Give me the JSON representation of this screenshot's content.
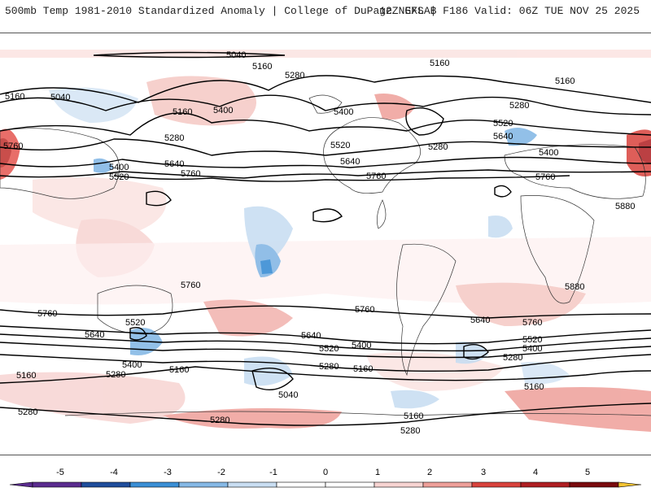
{
  "header": {
    "title": "500mb Temp 1981-2010 Standardized Anomaly | College of DuPage NEXLAB",
    "run_info": "12Z GFS | F186 Valid: 06Z TUE NOV 25 2025"
  },
  "map": {
    "contour_labels": [
      {
        "id": "c5040-top",
        "text": "5040"
      },
      {
        "id": "c5160-top",
        "text": "5160"
      },
      {
        "id": "c5160-ne",
        "text": "5160"
      },
      {
        "id": "c5280-n",
        "text": "5280"
      },
      {
        "id": "c5160-w",
        "text": "5160"
      },
      {
        "id": "c5040-w",
        "text": "5040"
      },
      {
        "id": "c5160-nw",
        "text": "5160"
      },
      {
        "id": "c5400-n",
        "text": "5400"
      },
      {
        "id": "c5280-nw",
        "text": "5280"
      },
      {
        "id": "c5160-e",
        "text": "5160"
      },
      {
        "id": "c5280-e",
        "text": "5280"
      },
      {
        "id": "c5400-na",
        "text": "5400"
      },
      {
        "id": "c5520-e",
        "text": "5520"
      },
      {
        "id": "c5640-e",
        "text": "5640"
      },
      {
        "id": "c5520-na",
        "text": "5520"
      },
      {
        "id": "c5280-na",
        "text": "5280"
      },
      {
        "id": "c5400-eu",
        "text": "5400"
      },
      {
        "id": "c5760-w",
        "text": "5760"
      },
      {
        "id": "c5400-asia",
        "text": "5400"
      },
      {
        "id": "c5520-asia",
        "text": "5520"
      },
      {
        "id": "c5640-asia",
        "text": "5640"
      },
      {
        "id": "c5760-asia",
        "text": "5760"
      },
      {
        "id": "c5640-na",
        "text": "5640"
      },
      {
        "id": "c5760-na",
        "text": "5760"
      },
      {
        "id": "c5760-eu",
        "text": "5760"
      },
      {
        "id": "c5880-af",
        "text": "5880"
      },
      {
        "id": "c5880-af2",
        "text": "5880"
      },
      {
        "id": "c5760-au",
        "text": "5760"
      },
      {
        "id": "c5760-sw",
        "text": "5760"
      },
      {
        "id": "c5760-sa",
        "text": "5760"
      },
      {
        "id": "c5640-sa",
        "text": "5640"
      },
      {
        "id": "c5760-se",
        "text": "5760"
      },
      {
        "id": "c5520-au",
        "text": "5520"
      },
      {
        "id": "c5640-sw",
        "text": "5640"
      },
      {
        "id": "c5640-sc",
        "text": "5640"
      },
      {
        "id": "c5520-sc",
        "text": "5520"
      },
      {
        "id": "c5400-sc",
        "text": "5400"
      },
      {
        "id": "c5520-se",
        "text": "5520"
      },
      {
        "id": "c5400-se",
        "text": "5400"
      },
      {
        "id": "c5280-se",
        "text": "5280"
      },
      {
        "id": "c5400-s",
        "text": "5400"
      },
      {
        "id": "c5280-s",
        "text": "5280"
      },
      {
        "id": "c5160-s",
        "text": "5160"
      },
      {
        "id": "c5280-sc",
        "text": "5280"
      },
      {
        "id": "c5160-sc",
        "text": "5160"
      },
      {
        "id": "c5160-sw",
        "text": "5160"
      },
      {
        "id": "c5040-s",
        "text": "5040"
      },
      {
        "id": "c5160-se",
        "text": "5160"
      },
      {
        "id": "c5280-sw",
        "text": "5280"
      },
      {
        "id": "c5280-sfar",
        "text": "5280"
      },
      {
        "id": "c5160-sfar",
        "text": "5160"
      },
      {
        "id": "c5280-sbottom",
        "text": "5280"
      }
    ]
  },
  "colorbar": {
    "ticks": [
      "-5",
      "-4",
      "-3",
      "-2",
      "-1",
      "0",
      "1",
      "2",
      "3",
      "4",
      "5"
    ],
    "colors": {
      "neg5": "#5b2c8f",
      "neg4": "#1f4e9c",
      "neg3": "#3a8fd6",
      "neg2": "#86b9e6",
      "neg1": "#c9def2",
      "zero": "#ffffff",
      "pos1": "#f7d4d2",
      "pos2": "#ee9f99",
      "pos3": "#d9433d",
      "pos4": "#b01f23",
      "pos5": "#7a0b0e",
      "over": "#f5c431"
    }
  }
}
